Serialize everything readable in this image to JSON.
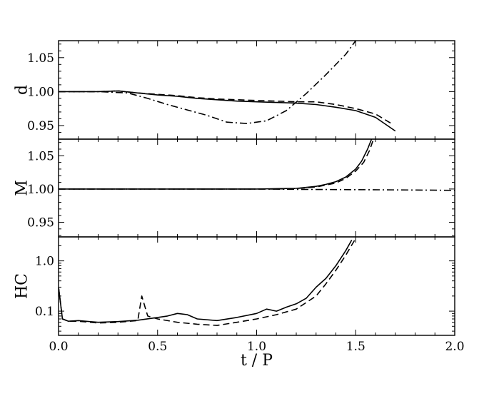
{
  "chart_data": [
    {
      "type": "line",
      "ylabel": "d",
      "xlim": [
        0,
        2.0
      ],
      "ylim": [
        0.93,
        1.075
      ],
      "yscale": "linear",
      "yticks": [
        0.95,
        1.0,
        1.05
      ],
      "ytick_labels": [
        "0.95",
        "1.00",
        "1.05"
      ],
      "series": [
        {
          "style": "solid",
          "x": [
            0,
            0.1,
            0.2,
            0.3,
            0.4,
            0.5,
            0.6,
            0.7,
            0.8,
            0.9,
            1.0,
            1.1,
            1.2,
            1.3,
            1.4,
            1.5,
            1.6,
            1.7
          ],
          "y": [
            1.0,
            1.0,
            1.0,
            1.001,
            0.998,
            0.995,
            0.993,
            0.99,
            0.988,
            0.986,
            0.985,
            0.984,
            0.983,
            0.981,
            0.977,
            0.972,
            0.962,
            0.942
          ]
        },
        {
          "style": "dashed",
          "x": [
            0,
            0.1,
            0.2,
            0.3,
            0.4,
            0.5,
            0.6,
            0.7,
            0.8,
            0.9,
            1.0,
            1.1,
            1.2,
            1.3,
            1.4,
            1.5,
            1.6,
            1.68
          ],
          "y": [
            1.0,
            1.0,
            1.0,
            1.001,
            0.998,
            0.996,
            0.994,
            0.991,
            0.989,
            0.988,
            0.987,
            0.986,
            0.985,
            0.985,
            0.981,
            0.975,
            0.967,
            0.953
          ]
        },
        {
          "style": "dashdot",
          "x": [
            0,
            0.2,
            0.35,
            0.45,
            0.55,
            0.65,
            0.75,
            0.85,
            0.95,
            1.05,
            1.15,
            1.25,
            1.35,
            1.45,
            1.5
          ],
          "y": [
            1.0,
            1.0,
            0.998,
            0.99,
            0.981,
            0.973,
            0.965,
            0.955,
            0.953,
            0.957,
            0.972,
            0.997,
            1.025,
            1.055,
            1.075
          ]
        }
      ]
    },
    {
      "type": "line",
      "ylabel": "M",
      "xlim": [
        0,
        2.0
      ],
      "ylim": [
        0.928,
        1.075
      ],
      "yscale": "linear",
      "yticks": [
        0.95,
        1.0,
        1.05
      ],
      "ytick_labels": [
        "0.95",
        "1.00",
        "1.05"
      ],
      "series": [
        {
          "style": "solid",
          "x": [
            0,
            0.4,
            0.8,
            1.0,
            1.1,
            1.2,
            1.3,
            1.35,
            1.4,
            1.45,
            1.5,
            1.53,
            1.56,
            1.58
          ],
          "y": [
            1.0,
            1.0,
            1.0,
            1.0,
            1.0005,
            1.001,
            1.004,
            1.007,
            1.011,
            1.018,
            1.03,
            1.042,
            1.06,
            1.075
          ]
        },
        {
          "style": "dashed",
          "x": [
            0,
            0.4,
            0.8,
            1.0,
            1.1,
            1.2,
            1.3,
            1.35,
            1.4,
            1.45,
            1.5,
            1.54,
            1.57,
            1.59
          ],
          "y": [
            1.0,
            1.0,
            1.0,
            1.0,
            1.0,
            1.0008,
            1.003,
            1.006,
            1.009,
            1.016,
            1.027,
            1.04,
            1.058,
            1.075
          ]
        },
        {
          "style": "dashdot",
          "x": [
            0,
            0.5,
            1.0,
            1.2,
            1.5,
            1.8,
            2.0
          ],
          "y": [
            1.0,
            1.0,
            1.0,
            0.9995,
            0.999,
            0.9985,
            0.998
          ]
        }
      ]
    },
    {
      "type": "line",
      "xlabel": "t / P",
      "ylabel": "HC",
      "xlim": [
        0,
        2.0
      ],
      "ylim": [
        0.033,
        3.0
      ],
      "yscale": "log",
      "yticks": [
        0.1,
        1.0
      ],
      "ytick_labels": [
        "0.1",
        "1.0"
      ],
      "xticks": [
        0,
        0.5,
        1.0,
        1.5,
        2.0
      ],
      "xtick_labels": [
        "0.0",
        "0.5",
        "1.0",
        "1.5",
        "2.0"
      ],
      "series": [
        {
          "style": "solid",
          "x": [
            0,
            0.02,
            0.05,
            0.1,
            0.2,
            0.3,
            0.4,
            0.5,
            0.55,
            0.6,
            0.65,
            0.7,
            0.8,
            0.9,
            1.0,
            1.05,
            1.1,
            1.15,
            1.2,
            1.25,
            1.3,
            1.35,
            1.4,
            1.45,
            1.48
          ],
          "y": [
            0.3,
            0.07,
            0.063,
            0.065,
            0.06,
            0.062,
            0.066,
            0.075,
            0.08,
            0.09,
            0.085,
            0.07,
            0.065,
            0.075,
            0.09,
            0.11,
            0.1,
            0.12,
            0.14,
            0.18,
            0.3,
            0.45,
            0.8,
            1.6,
            2.6
          ]
        },
        {
          "style": "dashed",
          "x": [
            0,
            0.02,
            0.05,
            0.1,
            0.2,
            0.3,
            0.4,
            0.42,
            0.45,
            0.5,
            0.6,
            0.7,
            0.8,
            0.9,
            1.0,
            1.1,
            1.2,
            1.3,
            1.35,
            1.4,
            1.45,
            1.5
          ],
          "y": [
            0.3,
            0.07,
            0.063,
            0.063,
            0.058,
            0.06,
            0.065,
            0.2,
            0.08,
            0.07,
            0.06,
            0.055,
            0.052,
            0.06,
            0.07,
            0.085,
            0.11,
            0.2,
            0.35,
            0.65,
            1.3,
            2.8
          ]
        }
      ]
    }
  ]
}
